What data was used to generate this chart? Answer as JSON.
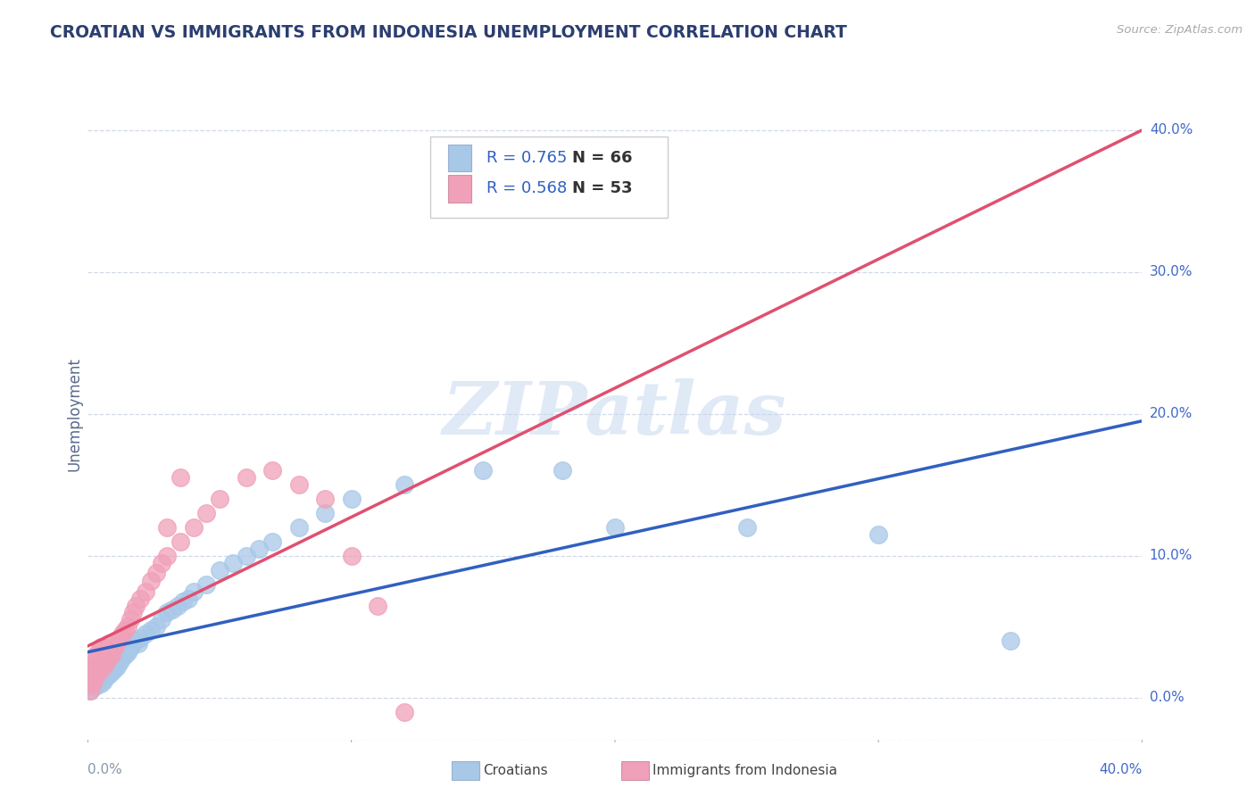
{
  "title": "CROATIAN VS IMMIGRANTS FROM INDONESIA UNEMPLOYMENT CORRELATION CHART",
  "source": "Source: ZipAtlas.com",
  "ylabel": "Unemployment",
  "ytick_labels": [
    "0.0%",
    "10.0%",
    "20.0%",
    "30.0%",
    "40.0%"
  ],
  "ytick_values": [
    0.0,
    0.1,
    0.2,
    0.3,
    0.4
  ],
  "xtick_labels": [
    "0.0%",
    "40.0%"
  ],
  "xlim": [
    0,
    0.4
  ],
  "ylim": [
    -0.03,
    0.43
  ],
  "blue_color": "#a8c8e8",
  "pink_color": "#f0a0b8",
  "blue_line_color": "#3060c0",
  "pink_line_color": "#e05070",
  "watermark": "ZIPatlas",
  "legend_r1": "R = 0.765",
  "legend_n1": "N = 66",
  "legend_r2": "R = 0.568",
  "legend_n2": "N = 53",
  "legend_label1": "Croatians",
  "legend_label2": "Immigrants from Indonesia",
  "blue_scatter_x": [
    0.001,
    0.001,
    0.001,
    0.002,
    0.002,
    0.002,
    0.003,
    0.003,
    0.003,
    0.003,
    0.004,
    0.004,
    0.004,
    0.005,
    0.005,
    0.005,
    0.005,
    0.005,
    0.006,
    0.006,
    0.006,
    0.006,
    0.007,
    0.007,
    0.008,
    0.008,
    0.009,
    0.009,
    0.01,
    0.01,
    0.011,
    0.012,
    0.013,
    0.014,
    0.015,
    0.016,
    0.017,
    0.018,
    0.019,
    0.02,
    0.022,
    0.024,
    0.026,
    0.028,
    0.03,
    0.032,
    0.034,
    0.036,
    0.038,
    0.04,
    0.045,
    0.05,
    0.055,
    0.06,
    0.065,
    0.07,
    0.08,
    0.09,
    0.1,
    0.12,
    0.15,
    0.18,
    0.2,
    0.25,
    0.3,
    0.35
  ],
  "blue_scatter_y": [
    0.005,
    0.01,
    0.015,
    0.008,
    0.012,
    0.018,
    0.008,
    0.012,
    0.016,
    0.02,
    0.01,
    0.014,
    0.018,
    0.01,
    0.014,
    0.018,
    0.022,
    0.026,
    0.012,
    0.016,
    0.02,
    0.024,
    0.015,
    0.02,
    0.016,
    0.022,
    0.018,
    0.025,
    0.02,
    0.028,
    0.022,
    0.025,
    0.028,
    0.03,
    0.032,
    0.035,
    0.038,
    0.04,
    0.038,
    0.042,
    0.045,
    0.048,
    0.05,
    0.055,
    0.06,
    0.062,
    0.065,
    0.068,
    0.07,
    0.075,
    0.08,
    0.09,
    0.095,
    0.1,
    0.105,
    0.11,
    0.12,
    0.13,
    0.14,
    0.15,
    0.16,
    0.16,
    0.12,
    0.12,
    0.115,
    0.04
  ],
  "pink_scatter_x": [
    0.001,
    0.001,
    0.001,
    0.001,
    0.002,
    0.002,
    0.002,
    0.002,
    0.003,
    0.003,
    0.003,
    0.003,
    0.004,
    0.004,
    0.004,
    0.005,
    0.005,
    0.005,
    0.006,
    0.006,
    0.007,
    0.007,
    0.008,
    0.008,
    0.009,
    0.01,
    0.011,
    0.012,
    0.013,
    0.014,
    0.015,
    0.016,
    0.017,
    0.018,
    0.02,
    0.022,
    0.024,
    0.026,
    0.028,
    0.03,
    0.035,
    0.04,
    0.045,
    0.05,
    0.06,
    0.07,
    0.08,
    0.09,
    0.1,
    0.11,
    0.12,
    0.03,
    0.035
  ],
  "pink_scatter_y": [
    0.005,
    0.01,
    0.015,
    0.02,
    0.01,
    0.015,
    0.02,
    0.025,
    0.015,
    0.02,
    0.025,
    0.03,
    0.018,
    0.025,
    0.032,
    0.02,
    0.028,
    0.036,
    0.022,
    0.03,
    0.025,
    0.035,
    0.028,
    0.038,
    0.03,
    0.035,
    0.038,
    0.042,
    0.045,
    0.048,
    0.05,
    0.055,
    0.06,
    0.065,
    0.07,
    0.075,
    0.082,
    0.088,
    0.095,
    0.1,
    0.11,
    0.12,
    0.13,
    0.14,
    0.155,
    0.16,
    0.15,
    0.14,
    0.1,
    0.065,
    -0.01,
    0.12,
    0.155
  ],
  "title_color": "#2c3e70",
  "axis_label_color": "#5a6a8a",
  "tick_color": "#8899aa",
  "grid_color": "#d0d8e8",
  "background_color": "#ffffff",
  "right_label_color": "#4169c8",
  "legend_text_color": "#3060c0",
  "legend_n_color": "#333333"
}
